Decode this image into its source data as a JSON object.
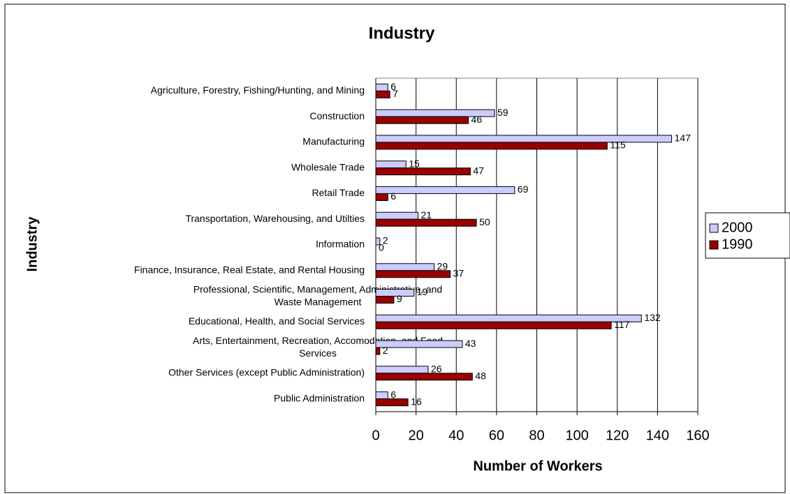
{
  "chart_data": {
    "type": "barh",
    "title": "Industry",
    "x_label": "Number of Workers",
    "y_label": "Industry",
    "categories": [
      "Agriculture, Forestry, Fishing/Hunting, and Mining",
      "Construction",
      "Manufacturing",
      "Wholesale Trade",
      "Retail Trade",
      "Transportation, Warehousing, and Utilties",
      "Information",
      "Finance, Insurance, Real Estate, and Rental Housing",
      "Professional, Scientific, Management, Administrative, and Waste Management",
      "Educational, Health, and Social Services",
      "Arts, Entertainment, Recreation, Accomodation, and Food Services",
      "Other Services (except Public Administration)",
      "Public Administration"
    ],
    "series": [
      {
        "name": "2000",
        "color": "#ccccff",
        "values": [
          6,
          59,
          147,
          15,
          69,
          21,
          2,
          29,
          19,
          132,
          43,
          26,
          6
        ]
      },
      {
        "name": "1990",
        "color": "#990000",
        "values": [
          7,
          46,
          115,
          47,
          6,
          50,
          0,
          37,
          9,
          117,
          2,
          48,
          16
        ]
      }
    ],
    "xlim": [
      0,
      160
    ],
    "xticks": [
      0,
      20,
      40,
      60,
      80,
      100,
      120,
      140,
      160
    ],
    "grid": true,
    "legend": "right"
  }
}
